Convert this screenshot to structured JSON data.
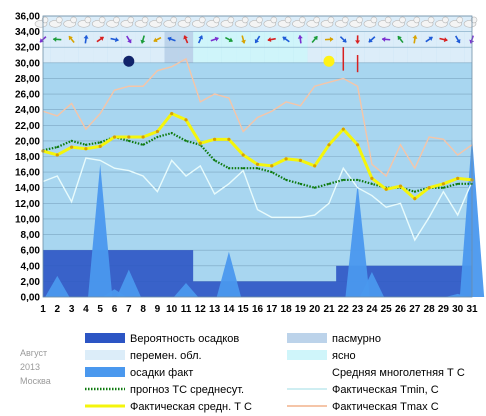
{
  "meta": {
    "month": "Август",
    "year": "2013",
    "city": "Москва"
  },
  "colors": {
    "plot_bg": "#a8d6f0",
    "cloudy": "#bcd3ea",
    "variable": "#dcedf9",
    "clear": "#cff5fa",
    "precip_prob": "#2c55c4",
    "precip_actual": "#4a98ee",
    "climate_mean": "#19e3ee",
    "forecast": "#0e7a0e",
    "actual_mean": "#f4f50c",
    "tmin": "#e8fbfc",
    "tmax": "#f5c5a8",
    "sun": "#fff215",
    "moon": "#10236a"
  },
  "chart_data": {
    "type": "line",
    "x": [
      1,
      2,
      3,
      4,
      5,
      6,
      7,
      8,
      9,
      10,
      11,
      12,
      13,
      14,
      15,
      16,
      17,
      18,
      19,
      20,
      21,
      22,
      23,
      24,
      25,
      26,
      27,
      28,
      29,
      30,
      31
    ],
    "ylim": [
      0,
      36
    ],
    "yticks": [
      "0,00",
      "2,00",
      "4,00",
      "6,00",
      "8,00",
      "10,00",
      "12,00",
      "14,00",
      "16,00",
      "18,00",
      "20,00",
      "22,00",
      "24,00",
      "26,00",
      "28,00",
      "30,00",
      "32,00",
      "34,00",
      "36,00"
    ],
    "xticks": [
      "1",
      "2",
      "3",
      "4",
      "5",
      "6",
      "7",
      "8",
      "9",
      "10",
      "11",
      "12",
      "13",
      "14",
      "15",
      "16",
      "17",
      "18",
      "19",
      "20",
      "21",
      "22",
      "23",
      "24",
      "25",
      "26",
      "27",
      "28",
      "29",
      "30",
      "31"
    ],
    "series": [
      {
        "key": "tmax",
        "name": "Фактическая Tmax C",
        "values": [
          23.8,
          23.2,
          24.8,
          21.5,
          23.5,
          26.5,
          27,
          27,
          29,
          29.5,
          30.5,
          25,
          26,
          25.5,
          21.2,
          23,
          23.8,
          25,
          24.5,
          27,
          27.5,
          28,
          27,
          17,
          15.5,
          19.5,
          16.5,
          20.5,
          20.2,
          18.2,
          19.5
        ]
      },
      {
        "key": "tmin",
        "name": "Фактическая Tmin, C",
        "values": [
          14.8,
          15.5,
          12.2,
          17.8,
          17.5,
          16.5,
          16.2,
          15.5,
          13.5,
          17.5,
          15.5,
          16.8,
          13.2,
          14.5,
          16.2,
          11.2,
          10.2,
          10.2,
          10.2,
          10.5,
          12,
          16.5,
          14,
          13,
          11.5,
          12,
          7.3,
          10.2,
          13.5,
          10.5,
          14.8
        ]
      },
      {
        "key": "climate",
        "name": "Средняя многолетняя Т С",
        "values": [
          18.8,
          18.5,
          18.2,
          18,
          17.8,
          17.6,
          17.4,
          17.2,
          17,
          16.9,
          16.8,
          16.6,
          16.4,
          16.3,
          16.2,
          16,
          15.8,
          15.6,
          15.5,
          15.3,
          15.1,
          15,
          14.8,
          14.6,
          14.5,
          14.3,
          14.2,
          14,
          13.9,
          13.8,
          13.7
        ]
      },
      {
        "key": "forecast",
        "name": "прогноз ТС среднесут.",
        "values": [
          18.8,
          19.2,
          20,
          19.5,
          19.8,
          20.5,
          20,
          19.5,
          20.5,
          21,
          20,
          19.5,
          17.5,
          16.5,
          16.5,
          16.5,
          16,
          15,
          14.5,
          14,
          14.5,
          15,
          15,
          14.5,
          14,
          14,
          13.5,
          14,
          14,
          14.5,
          14.5
        ]
      },
      {
        "key": "actual",
        "name": "Фактическая средн. Т С",
        "values": [
          18.7,
          18.2,
          19.2,
          19,
          19.3,
          20.5,
          20.5,
          20.5,
          21.2,
          23.5,
          22.7,
          19.7,
          20.2,
          20.2,
          18.2,
          17,
          16.8,
          17.7,
          17.5,
          16.8,
          19.5,
          21.5,
          19.5,
          15.2,
          13.8,
          14.2,
          12.6,
          14,
          14.5,
          15.2,
          15
        ]
      }
    ],
    "precip_prob": [
      6,
      6,
      6,
      6,
      6,
      6,
      6,
      6,
      6,
      6,
      6,
      2,
      2,
      2,
      2,
      2,
      2,
      2,
      2,
      2,
      2,
      4,
      4,
      4,
      4,
      4,
      4,
      4,
      4,
      4,
      4
    ],
    "precip_actual": [
      0,
      2.7,
      0,
      0,
      17,
      1,
      3.5,
      0,
      0,
      0,
      1.8,
      0,
      0,
      5.8,
      0,
      0,
      0,
      0,
      0,
      0,
      0,
      0,
      14.5,
      3.2,
      0,
      0,
      0,
      0,
      0,
      0.4,
      20.5
    ],
    "sky": [
      "variable",
      "variable",
      "variable",
      "variable",
      "variable",
      "variable",
      "variable",
      "variable",
      "variable",
      "cloudy",
      "cloudy",
      "clear",
      "clear",
      "clear",
      "clear",
      "clear",
      "clear",
      "clear",
      "clear",
      "variable",
      "variable",
      "variable",
      "variable",
      "variable",
      "variable",
      "variable",
      "variable",
      "variable",
      "variable",
      "variable",
      "variable"
    ],
    "moon_day": 7,
    "sun_day": 21
  },
  "legend": [
    {
      "key": "precip_prob",
      "label": "Вероятность осадков",
      "kind": "rect"
    },
    {
      "key": "cloudy",
      "label": "пасмурно",
      "kind": "rect"
    },
    {
      "key": "variable",
      "label": "перемен. обл.",
      "kind": "rect"
    },
    {
      "key": "clear",
      "label": "ясно",
      "kind": "rect"
    },
    {
      "key": "precip_actual",
      "label": "осадки факт",
      "kind": "rect"
    },
    {
      "key": "climate",
      "label": "Средняя многолетняя Т С",
      "kind": "line"
    },
    {
      "key": "forecast",
      "label": "прогноз ТС среднесут.",
      "kind": "dotted"
    },
    {
      "key": "tmin",
      "label": "Фактическая Tmin, C",
      "kind": "line"
    },
    {
      "key": "actual",
      "label": "Фактическая средн. Т С",
      "kind": "thick"
    },
    {
      "key": "tmax",
      "label": "Фактическая Tmax C",
      "kind": "line"
    }
  ]
}
